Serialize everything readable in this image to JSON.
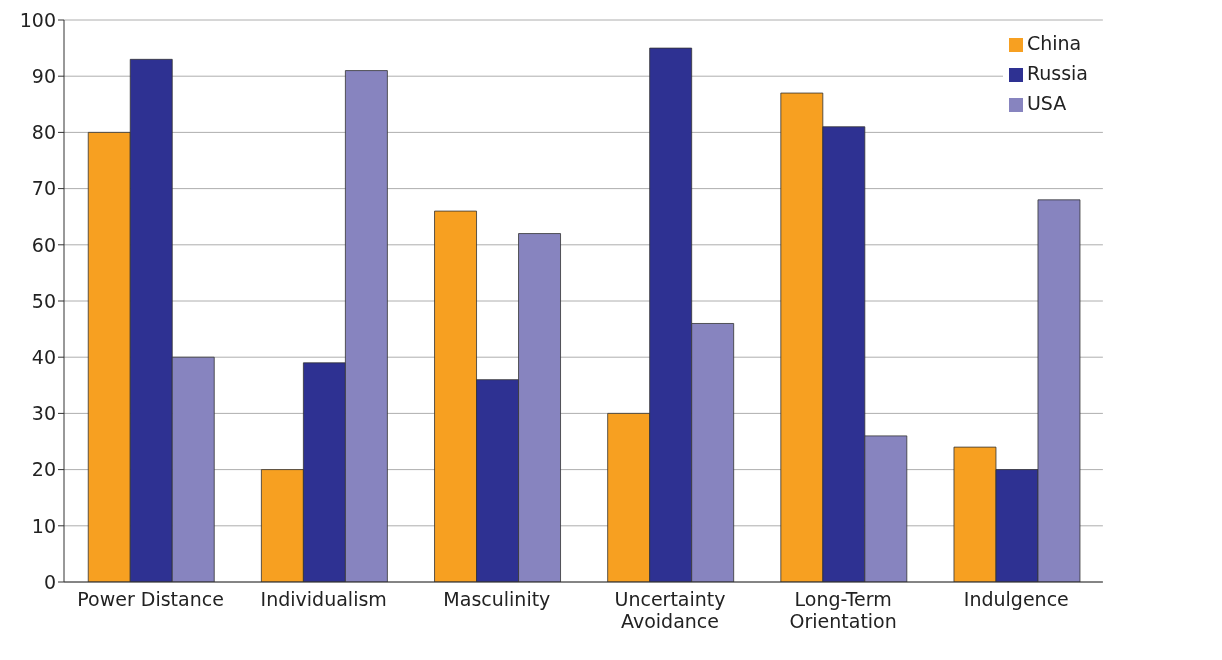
{
  "chart_data": {
    "type": "bar",
    "categories": [
      "Power Distance",
      "Individualism",
      "Masculinity",
      "Uncertainty Avoidance",
      "Long-Term Orientation",
      "Indulgence"
    ],
    "series": [
      {
        "name": "China",
        "color": "#f7a021",
        "values": [
          80,
          20,
          66,
          30,
          87,
          24
        ]
      },
      {
        "name": "Russia",
        "color": "#2e3192",
        "values": [
          93,
          39,
          36,
          95,
          81,
          20
        ]
      },
      {
        "name": "USA",
        "color": "#8784bf",
        "values": [
          40,
          91,
          62,
          46,
          26,
          68
        ]
      }
    ],
    "ylim": [
      0,
      100
    ],
    "yticks": [
      0,
      10,
      20,
      30,
      40,
      50,
      60,
      70,
      80,
      90,
      100
    ],
    "grid": "y",
    "legend": "top right"
  }
}
